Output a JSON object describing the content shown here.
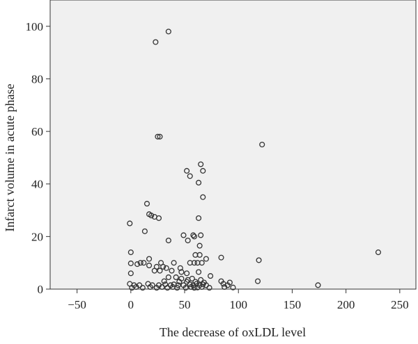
{
  "chart_data": {
    "type": "scatter",
    "xlabel": "The decrease of oxLDL level",
    "ylabel": "Infarct volume in acute phase",
    "xlim": [
      -75,
      265
    ],
    "ylim": [
      0,
      110
    ],
    "xticks": [
      -50,
      0,
      50,
      100,
      150,
      200,
      250
    ],
    "yticks": [
      0,
      20,
      40,
      60,
      80,
      100
    ],
    "xtick_labels": [
      "−50",
      "0",
      "50",
      "100",
      "150",
      "200",
      "250"
    ],
    "ytick_labels": [
      "0",
      "20",
      "40",
      "60",
      "80",
      "100"
    ],
    "grid": false,
    "plot_background": "#f0f0f0",
    "marker": "open-circle",
    "marker_color": "#333333",
    "points": [
      [
        35,
        98
      ],
      [
        23,
        94
      ],
      [
        25,
        58
      ],
      [
        27,
        58
      ],
      [
        122,
        55
      ],
      [
        65,
        47.5
      ],
      [
        52,
        45
      ],
      [
        67,
        45
      ],
      [
        55,
        43
      ],
      [
        63,
        40.5
      ],
      [
        67,
        35
      ],
      [
        15,
        32.5
      ],
      [
        17,
        28.5
      ],
      [
        19,
        28
      ],
      [
        22,
        27.5
      ],
      [
        26,
        27
      ],
      [
        63,
        27
      ],
      [
        -1,
        25
      ],
      [
        13,
        22
      ],
      [
        49,
        20.5
      ],
      [
        58,
        20.5
      ],
      [
        59,
        20
      ],
      [
        65,
        20.5
      ],
      [
        35,
        18.5
      ],
      [
        53,
        18.5
      ],
      [
        64,
        16.5
      ],
      [
        0,
        14
      ],
      [
        230,
        14
      ],
      [
        60,
        13
      ],
      [
        64,
        13
      ],
      [
        84,
        12
      ],
      [
        17,
        11.5
      ],
      [
        70,
        11.5
      ],
      [
        119,
        11
      ],
      [
        0,
        9.8
      ],
      [
        6,
        9.5
      ],
      [
        9,
        10
      ],
      [
        12,
        10
      ],
      [
        28,
        10
      ],
      [
        40,
        10
      ],
      [
        55,
        10
      ],
      [
        59,
        10
      ],
      [
        62,
        10
      ],
      [
        66,
        10
      ],
      [
        17,
        9
      ],
      [
        24,
        8.5
      ],
      [
        30,
        8.5
      ],
      [
        33,
        8
      ],
      [
        46,
        8
      ],
      [
        0,
        6
      ],
      [
        22,
        7
      ],
      [
        27,
        7
      ],
      [
        38,
        7
      ],
      [
        47,
        6.5
      ],
      [
        52,
        6
      ],
      [
        63,
        6.5
      ],
      [
        74,
        5
      ],
      [
        35,
        4.5
      ],
      [
        42,
        4.5
      ],
      [
        47,
        4
      ],
      [
        53,
        3.5
      ],
      [
        57,
        4
      ],
      [
        65,
        3.5
      ],
      [
        31,
        3
      ],
      [
        45,
        2.8
      ],
      [
        52,
        2.8
      ],
      [
        60,
        2.8
      ],
      [
        68,
        2.5
      ],
      [
        84,
        3
      ],
      [
        118,
        3
      ],
      [
        86,
        2
      ],
      [
        92,
        2.5
      ],
      [
        -1,
        2
      ],
      [
        3,
        1.5
      ],
      [
        8,
        1.5
      ],
      [
        16,
        2
      ],
      [
        20,
        1.5
      ],
      [
        26,
        1.5
      ],
      [
        32,
        1.8
      ],
      [
        37,
        1.5
      ],
      [
        40,
        1.8
      ],
      [
        44,
        1.5
      ],
      [
        49,
        1.5
      ],
      [
        55,
        1.8
      ],
      [
        58,
        1.5
      ],
      [
        61,
        2
      ],
      [
        64,
        1.5
      ],
      [
        67,
        1.8
      ],
      [
        70,
        1.5
      ],
      [
        90,
        1.5
      ],
      [
        1,
        0.5
      ],
      [
        5,
        0.8
      ],
      [
        11,
        0.5
      ],
      [
        18,
        0.8
      ],
      [
        24,
        0.5
      ],
      [
        29,
        0.8
      ],
      [
        34,
        0.5
      ],
      [
        39,
        0.8
      ],
      [
        43,
        0.5
      ],
      [
        51,
        0.5
      ],
      [
        56,
        0.8
      ],
      [
        59,
        0.5
      ],
      [
        62,
        0.6
      ],
      [
        66,
        0.8
      ],
      [
        73,
        0.5
      ],
      [
        87,
        0.8
      ],
      [
        95,
        0.6
      ],
      [
        174,
        1.5
      ]
    ]
  }
}
